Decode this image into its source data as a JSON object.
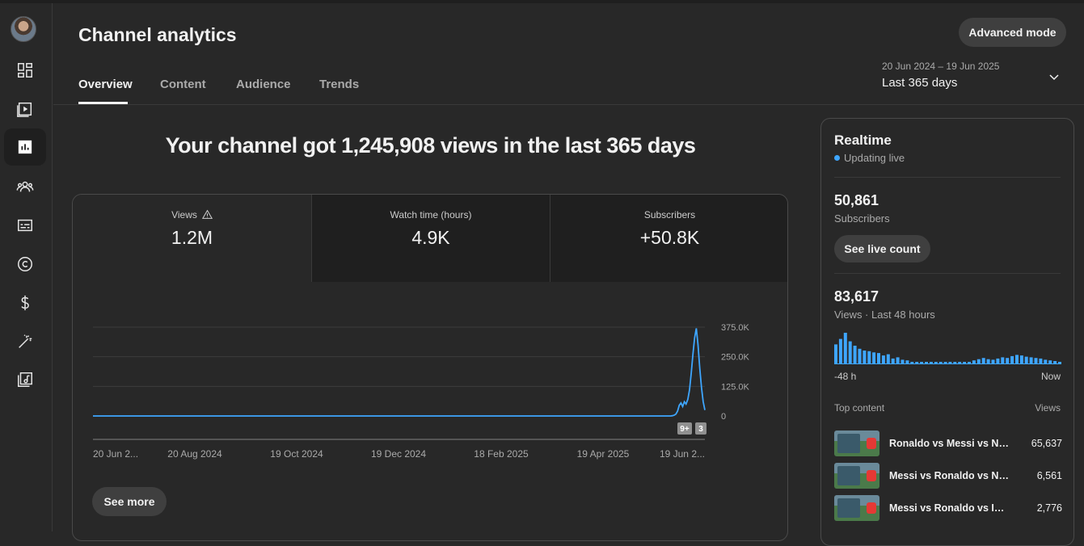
{
  "header": {
    "title": "Channel analytics",
    "advanced_mode_label": "Advanced mode",
    "tabs": [
      {
        "label": "Overview"
      },
      {
        "label": "Content"
      },
      {
        "label": "Audience"
      },
      {
        "label": "Trends"
      }
    ],
    "date_range": "20 Jun 2024 – 19 Jun 2025",
    "date_preset": "Last 365 days"
  },
  "sidebar": {
    "items": [
      {
        "icon": "dashboard-icon"
      },
      {
        "icon": "content-icon"
      },
      {
        "icon": "analytics-icon",
        "active": true
      },
      {
        "icon": "community-icon"
      },
      {
        "icon": "subtitles-icon"
      },
      {
        "icon": "copyright-icon"
      },
      {
        "icon": "earn-icon"
      },
      {
        "icon": "customization-icon"
      },
      {
        "icon": "audio-library-icon"
      }
    ]
  },
  "main": {
    "headline": "Your channel got 1,245,908 views in the last 365 days",
    "metrics": [
      {
        "label": "Views",
        "value": "1.2M",
        "warning": true
      },
      {
        "label": "Watch time (hours)",
        "value": "4.9K"
      },
      {
        "label": "Subscribers",
        "value": "+50.8K"
      }
    ],
    "see_more_label": "See more"
  },
  "chart_data": {
    "type": "line",
    "series": [
      {
        "values": [
          0,
          0,
          0,
          0,
          0,
          0,
          0,
          0,
          0,
          0,
          0,
          0,
          0,
          0,
          0,
          0,
          0,
          0,
          0,
          0,
          0,
          0,
          0,
          0,
          0,
          0,
          0,
          0,
          0,
          0,
          0,
          0,
          0,
          0,
          0,
          0,
          0,
          0,
          0,
          0,
          0,
          0,
          0,
          0,
          0,
          0,
          0,
          0,
          0,
          0,
          0,
          0,
          0,
          0,
          0,
          0,
          0,
          0,
          0,
          0,
          0,
          0,
          0,
          0,
          0,
          0,
          0,
          0,
          0,
          0,
          0,
          0,
          0,
          0,
          0,
          0,
          0,
          0,
          0,
          0,
          0,
          0,
          0,
          0,
          0,
          0,
          0,
          0,
          0,
          0,
          0,
          0,
          0,
          0,
          0,
          0,
          0,
          0,
          0,
          0,
          0,
          0,
          0,
          0,
          0,
          0,
          0,
          0,
          0,
          0,
          0,
          0,
          0,
          0,
          0,
          0,
          0,
          0,
          0,
          0,
          0,
          0,
          0,
          0,
          0,
          0,
          0,
          0,
          0,
          0,
          0,
          0,
          0,
          0,
          0,
          0,
          0,
          0,
          0,
          0,
          0,
          0,
          0,
          0,
          0,
          0,
          0,
          0,
          0,
          0,
          0,
          0,
          0,
          0,
          0,
          0,
          0,
          0,
          0,
          0,
          0,
          0,
          0,
          0,
          0,
          0,
          0,
          0,
          0,
          0,
          0,
          0,
          0,
          0,
          0,
          0,
          0,
          0,
          0,
          0,
          0,
          0,
          0,
          0,
          0,
          0,
          0,
          0,
          0,
          0,
          0,
          0,
          0,
          0,
          0,
          0,
          0,
          0,
          0,
          0,
          0,
          0,
          0,
          0,
          0,
          0,
          0,
          0,
          0,
          0,
          0,
          0,
          0,
          0,
          0,
          0,
          0,
          0,
          0,
          0,
          0,
          0,
          0,
          0,
          0,
          0,
          0,
          0,
          0,
          0,
          0,
          0,
          0,
          0,
          0,
          0,
          0,
          0,
          0,
          0,
          0,
          0,
          0,
          0,
          0,
          0,
          0,
          0,
          0,
          0,
          0,
          0,
          0,
          0,
          0,
          0,
          0,
          0,
          0,
          0,
          0,
          0,
          0,
          0,
          0,
          0,
          0,
          0,
          0,
          0,
          0,
          0,
          0,
          0,
          0,
          0,
          0,
          0,
          0,
          0,
          0,
          0,
          0,
          0,
          0,
          0,
          0,
          0,
          0,
          0,
          0,
          0,
          0,
          0,
          0,
          0,
          0,
          0,
          0,
          0,
          0,
          0,
          0,
          0,
          0,
          0,
          0,
          0,
          0,
          0,
          0,
          0,
          0,
          0,
          0,
          0,
          0,
          0,
          0,
          0,
          0,
          0,
          0,
          0,
          0,
          0,
          0,
          0,
          0,
          0,
          0,
          0,
          0,
          0,
          0,
          0,
          0,
          0,
          0,
          1000,
          3000,
          8000,
          20000,
          45000,
          55000,
          40000,
          60000,
          50000,
          70000,
          110000,
          180000,
          260000,
          330000,
          370000,
          300000,
          200000,
          120000,
          60000,
          25000
        ]
      }
    ],
    "yticks": [
      "375.0K",
      "250.0K",
      "125.0K",
      "0"
    ],
    "ylim": [
      0,
      375000
    ],
    "xticks": [
      "20 Jun 2...",
      "20 Aug 2024",
      "19 Oct 2024",
      "19 Dec 2024",
      "18 Feb 2025",
      "19 Apr 2025",
      "19 Jun 2..."
    ],
    "markers": [
      "9+",
      "3"
    ],
    "grid": true
  },
  "realtime": {
    "title": "Realtime",
    "status": "Updating live",
    "subscribers_value": "50,861",
    "subscribers_label": "Subscribers",
    "live_count_label": "See live count",
    "views_value": "83,617",
    "views_label": "Views · Last 48 hours",
    "hourly_bars": [
      62,
      80,
      100,
      72,
      58,
      48,
      42,
      40,
      36,
      34,
      26,
      30,
      16,
      20,
      12,
      10,
      4,
      4,
      4,
      4,
      4,
      4,
      4,
      4,
      4,
      4,
      4,
      4,
      4,
      10,
      14,
      18,
      14,
      12,
      16,
      20,
      18,
      24,
      28,
      26,
      22,
      20,
      18,
      16,
      12,
      10,
      8,
      4
    ],
    "axis_start": "-48 h",
    "axis_end": "Now",
    "top_content_label": "Top content",
    "top_content_views_label": "Views",
    "top_content": [
      {
        "title": "Ronaldo vs Messi vs Neymar",
        "views": "65,637"
      },
      {
        "title": "Messi vs Ronaldo vs Neymar",
        "views": "6,561"
      },
      {
        "title": "Messi vs Ronaldo vs IShowSpeed",
        "views": "2,776"
      }
    ]
  }
}
